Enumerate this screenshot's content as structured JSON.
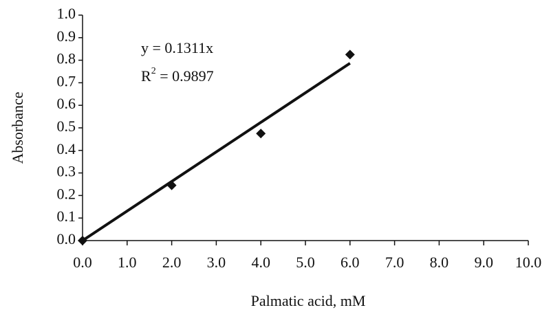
{
  "chart_data": {
    "type": "scatter",
    "x_label": "Palmatic acid, mM",
    "y_label": "Absorbance",
    "x": [
      0,
      2,
      4,
      6
    ],
    "values": [
      0,
      0.245,
      0.475,
      0.825
    ],
    "color": "#111111",
    "trendline": {
      "x": [
        0,
        6
      ],
      "values": [
        0,
        0.7866
      ],
      "color": "#111111"
    },
    "annotations": [
      {
        "text": "y = 0.1311x"
      },
      {
        "base": "R",
        "sup": "2",
        "rest": " = 0.9897"
      }
    ],
    "xlim": [
      0,
      10
    ],
    "xticks": [
      {
        "value": 0,
        "label": "0.0"
      },
      {
        "value": 1,
        "label": "1.0"
      },
      {
        "value": 2,
        "label": "2.0"
      },
      {
        "value": 3,
        "label": "3.0"
      },
      {
        "value": 4,
        "label": "4.0"
      },
      {
        "value": 5,
        "label": "5.0"
      },
      {
        "value": 6,
        "label": "6.0"
      },
      {
        "value": 7,
        "label": "7.0"
      },
      {
        "value": 8,
        "label": "8.0"
      },
      {
        "value": 9,
        "label": "9.0"
      },
      {
        "value": 10,
        "label": "10.0"
      }
    ],
    "ylim": [
      0,
      1
    ],
    "yticks": [
      {
        "value": 0,
        "label": "0.0"
      },
      {
        "value": 0.1,
        "label": "0.1"
      },
      {
        "value": 0.2,
        "label": "0.2"
      },
      {
        "value": 0.3,
        "label": "0.3"
      },
      {
        "value": 0.4,
        "label": "0.4"
      },
      {
        "value": 0.5,
        "label": "0.5"
      },
      {
        "value": 0.6,
        "label": "0.6"
      },
      {
        "value": 0.7,
        "label": "0.7"
      },
      {
        "value": 0.8,
        "label": "0.8"
      },
      {
        "value": 0.9,
        "label": "0.9"
      },
      {
        "value": 1,
        "label": "1.0"
      }
    ],
    "grid": false
  }
}
